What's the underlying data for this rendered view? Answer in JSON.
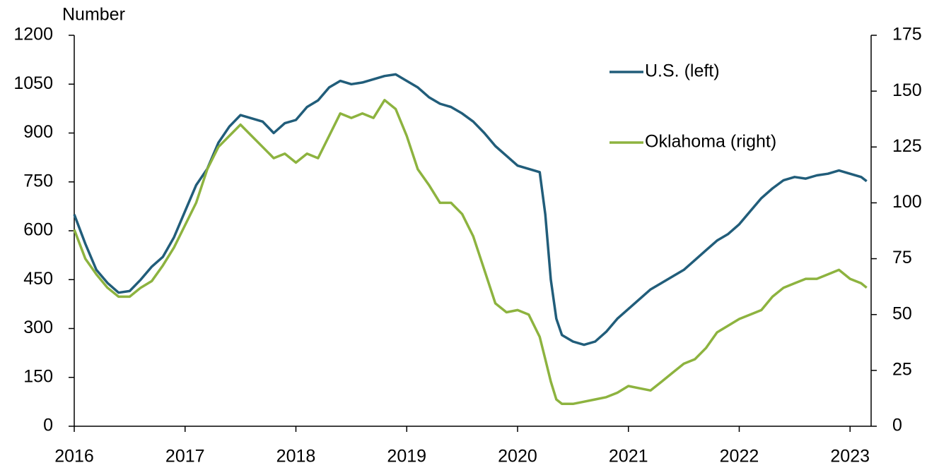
{
  "chart_data": {
    "type": "line",
    "y_label": "Number",
    "x": [
      2016.0,
      2016.1,
      2016.2,
      2016.3,
      2016.4,
      2016.5,
      2016.6,
      2016.7,
      2016.8,
      2016.9,
      2017.0,
      2017.1,
      2017.2,
      2017.3,
      2017.4,
      2017.5,
      2017.6,
      2017.7,
      2017.8,
      2017.9,
      2018.0,
      2018.1,
      2018.2,
      2018.3,
      2018.4,
      2018.5,
      2018.6,
      2018.7,
      2018.8,
      2018.9,
      2019.0,
      2019.1,
      2019.2,
      2019.3,
      2019.4,
      2019.5,
      2019.6,
      2019.7,
      2019.8,
      2019.9,
      2020.0,
      2020.1,
      2020.2,
      2020.25,
      2020.3,
      2020.35,
      2020.4,
      2020.5,
      2020.6,
      2020.7,
      2020.8,
      2020.9,
      2021.0,
      2021.1,
      2021.2,
      2021.3,
      2021.4,
      2021.5,
      2021.6,
      2021.7,
      2021.8,
      2021.9,
      2022.0,
      2022.1,
      2022.2,
      2022.3,
      2022.4,
      2022.5,
      2022.6,
      2022.7,
      2022.8,
      2022.9,
      2023.0,
      2023.1,
      2023.15
    ],
    "series": [
      {
        "name": "U.S. (left)",
        "color": "#215d7a",
        "axis": "y",
        "values": [
          650,
          560,
          480,
          440,
          410,
          415,
          450,
          490,
          520,
          580,
          660,
          740,
          790,
          870,
          920,
          955,
          945,
          935,
          900,
          930,
          940,
          980,
          1000,
          1040,
          1060,
          1050,
          1055,
          1065,
          1075,
          1080,
          1060,
          1040,
          1010,
          990,
          980,
          960,
          935,
          900,
          860,
          830,
          800,
          790,
          780,
          650,
          450,
          330,
          280,
          260,
          250,
          260,
          290,
          330,
          360,
          390,
          420,
          440,
          460,
          480,
          510,
          540,
          570,
          590,
          620,
          660,
          700,
          730,
          755,
          765,
          760,
          770,
          775,
          785,
          775,
          765,
          752
        ]
      },
      {
        "name": "Oklahoma (right)",
        "color": "#8db33f",
        "axis": "y2",
        "values": [
          88,
          75,
          68,
          62,
          58,
          58,
          62,
          65,
          72,
          80,
          90,
          100,
          115,
          125,
          130,
          135,
          130,
          125,
          120,
          122,
          118,
          122,
          120,
          130,
          140,
          138,
          140,
          138,
          146,
          142,
          130,
          115,
          108,
          100,
          100,
          95,
          85,
          70,
          55,
          51,
          52,
          50,
          40,
          30,
          20,
          12,
          10,
          10,
          11,
          12,
          13,
          15,
          18,
          17,
          16,
          20,
          24,
          28,
          30,
          35,
          42,
          45,
          48,
          50,
          52,
          58,
          62,
          64,
          66,
          66,
          68,
          70,
          66,
          64,
          62
        ]
      }
    ],
    "xlim": [
      2016,
      2023.19
    ],
    "xticks": [
      2016,
      2017,
      2018,
      2019,
      2020,
      2021,
      2022,
      2023
    ],
    "ylim": [
      0,
      1200
    ],
    "yticks": [
      0,
      150,
      300,
      450,
      600,
      750,
      900,
      1050,
      1200
    ],
    "y2lim": [
      0,
      175
    ],
    "y2ticks": [
      0,
      25,
      50,
      75,
      100,
      125,
      150,
      175
    ],
    "legend": "top-right"
  }
}
